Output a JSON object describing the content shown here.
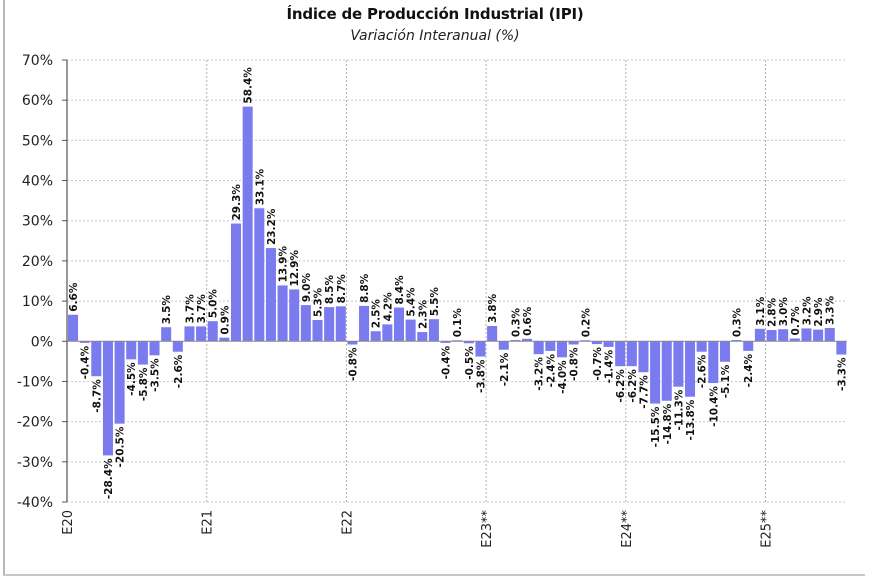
{
  "chart_data": {
    "type": "bar",
    "title": "Índice de Producción  Industrial  (IPI)",
    "subtitle": "Variación Interanual (%)",
    "xlabel": "",
    "ylabel": "",
    "ylim": [
      -40,
      70
    ],
    "ystep": 10,
    "grid": true,
    "bar_color": "#7b7bf0",
    "year_ticks": [
      {
        "label": "E20",
        "index": 0
      },
      {
        "label": "E21",
        "index": 12
      },
      {
        "label": "E22",
        "index": 24
      },
      {
        "label": "E23**",
        "index": 36
      },
      {
        "label": "E24**",
        "index": 48
      },
      {
        "label": "E25**",
        "index": 60
      }
    ],
    "values": [
      6.6,
      -0.4,
      -8.7,
      -28.4,
      -20.5,
      -4.5,
      -5.8,
      -3.5,
      3.5,
      -2.6,
      3.7,
      3.7,
      5.0,
      0.9,
      29.3,
      58.4,
      33.1,
      23.2,
      13.9,
      12.9,
      9.0,
      5.3,
      8.5,
      8.7,
      -0.8,
      8.8,
      2.5,
      4.2,
      8.4,
      5.4,
      2.3,
      5.5,
      -0.4,
      0.1,
      -0.5,
      -3.8,
      3.8,
      -2.1,
      0.3,
      0.6,
      -3.2,
      -2.4,
      -4.0,
      -0.8,
      0.2,
      -0.7,
      -1.4,
      -6.2,
      -6.2,
      -7.7,
      -15.5,
      -14.8,
      -11.3,
      -13.8,
      -2.6,
      -10.4,
      -5.1,
      0.3,
      -2.4,
      3.1,
      2.8,
      3.0,
      0.7,
      3.2,
      2.9,
      3.3,
      -3.3
    ],
    "labels": [
      "6.6%",
      "-0.4%",
      "-8.7%",
      "-28.4%",
      "-20.5%",
      "-4.5%",
      "-5.8%",
      "-3.5%",
      "3.5%",
      "-2.6%",
      "3.7%",
      "3.7%",
      "5.0%",
      "0.9%",
      "29.3%",
      "58.4%",
      "33.1%",
      "23.2%",
      "13.9%",
      "12.9%",
      "9.0%",
      "5.3%",
      "8.5%",
      "8.7%",
      "-0.8%",
      "8.8%",
      "2.5%",
      "4.2%",
      "8.4%",
      "5.4%",
      "2.3%",
      "5.5%",
      "-0.4%",
      "0.1%",
      "-0.5%",
      "-3.8%",
      "3.8%",
      "-2.1%",
      "0.3%",
      "0.6%",
      "-3.2%",
      "-2.4%",
      "-4.0%",
      "-0.8%",
      "0.2%",
      "-0.7%",
      "-1.4%",
      "-6.2%",
      "-6.2%",
      "-7.7%",
      "-15.5%",
      "-14.8%",
      "-11.3%",
      "-13.8%",
      "-2.6%",
      "-10.4%",
      "-5.1%",
      "0.3%",
      "-2.4%",
      "3.1%",
      "2.8%",
      "3.0%",
      "0.7%",
      "3.2%",
      "2.9%",
      "3.3%",
      "-3.3%"
    ],
    "ytick_labels": [
      "70%",
      "60%",
      "50%",
      "40%",
      "30%",
      "20%",
      "10%",
      "0%",
      "-10%",
      "-20%",
      "-30%",
      "-40%"
    ]
  }
}
